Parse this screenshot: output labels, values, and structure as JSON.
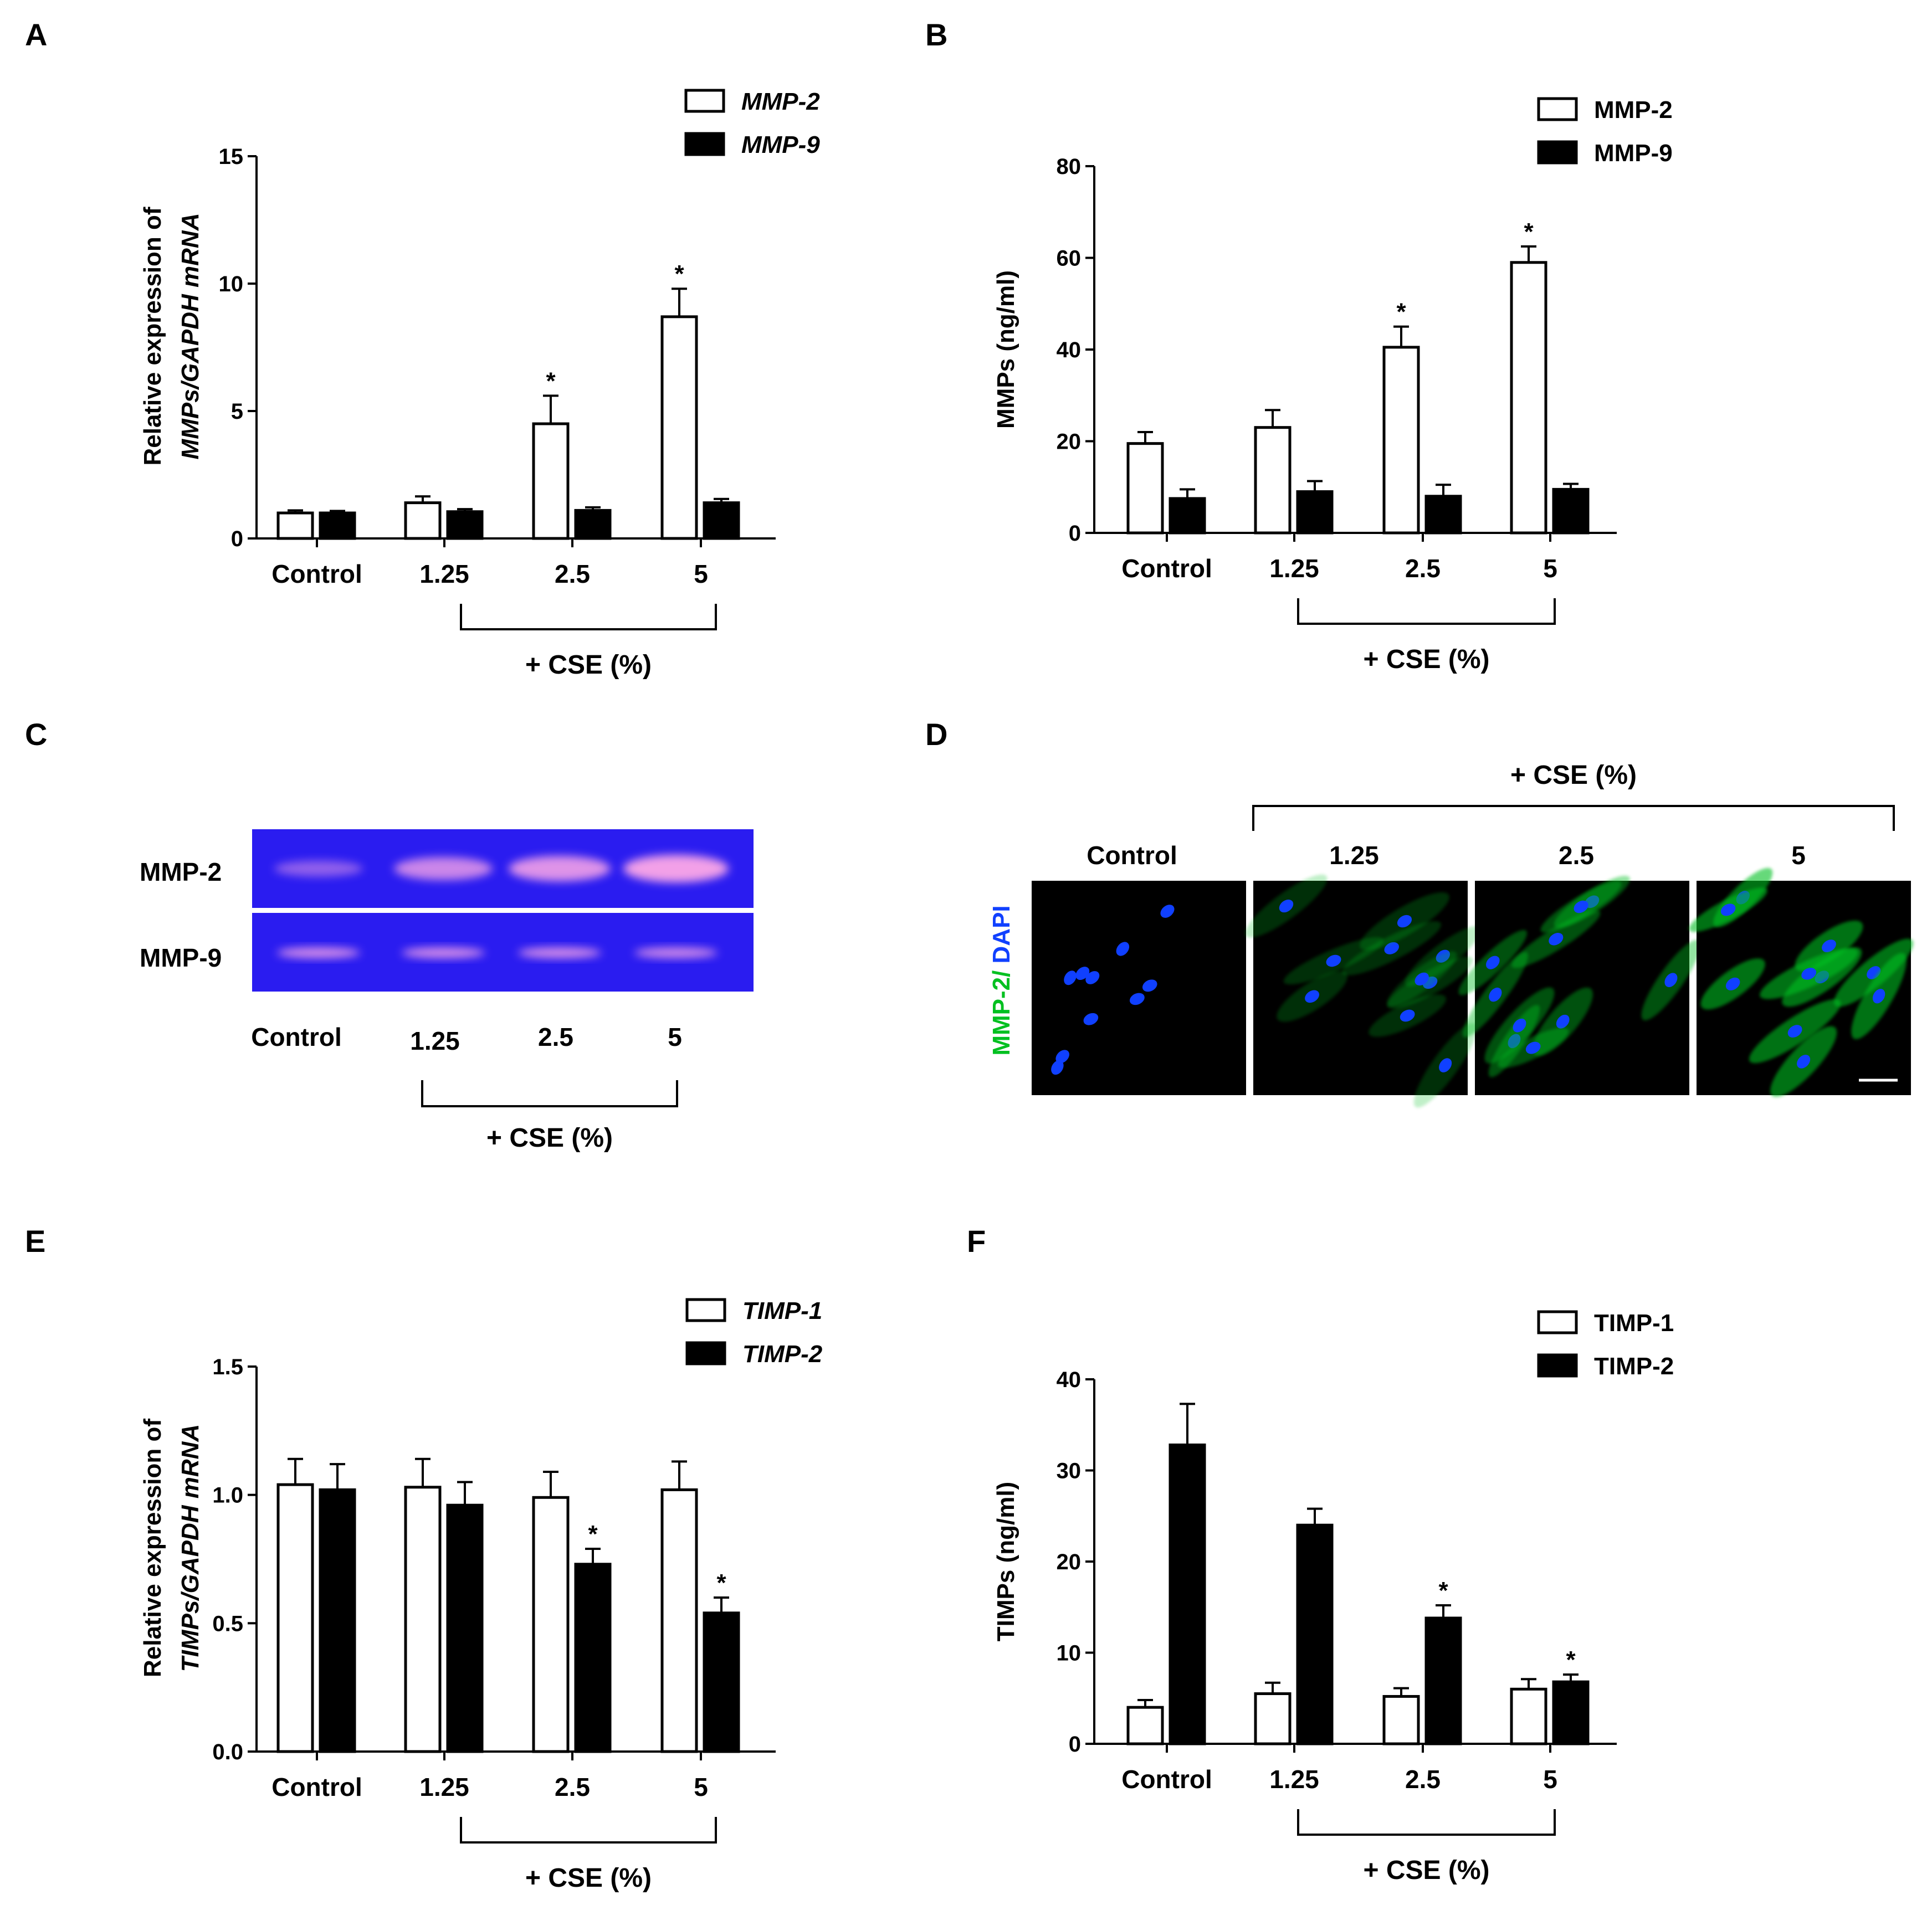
{
  "figure": {
    "panels": [
      "A",
      "B",
      "C",
      "D",
      "E",
      "F"
    ]
  },
  "chart_data": [
    {
      "panel": "A",
      "type": "bar",
      "categories": [
        "Control",
        "1.25",
        "2.5",
        "5"
      ],
      "group_label": "+ CSE (%)",
      "ylabel_line1": "Relative expression of",
      "ylabel_line2": "MMPs/GAPDH mRNA",
      "ylim": [
        0,
        15
      ],
      "yticks": [
        "0",
        "5",
        "10",
        "15"
      ],
      "legend_position": "top-right",
      "series": [
        {
          "name": "MMP-2",
          "fill": "#ffffff",
          "values": [
            1.0,
            1.4,
            4.5,
            8.7
          ],
          "errors": [
            0.1,
            0.25,
            1.1,
            1.1
          ],
          "stars": [
            false,
            false,
            true,
            true
          ]
        },
        {
          "name": "MMP-9",
          "fill": "#000000",
          "values": [
            1.0,
            1.05,
            1.1,
            1.4
          ],
          "errors": [
            0.08,
            0.1,
            0.12,
            0.15
          ],
          "stars": [
            false,
            false,
            false,
            false
          ]
        }
      ]
    },
    {
      "panel": "B",
      "type": "bar",
      "categories": [
        "Control",
        "1.25",
        "2.5",
        "5"
      ],
      "group_label": "+ CSE (%)",
      "ylabel_line1": "MMPs (ng/ml)",
      "ylabel_line2": "",
      "ylim": [
        0,
        80
      ],
      "yticks": [
        "0",
        "20",
        "40",
        "60",
        "80"
      ],
      "legend_position": "top-right",
      "series": [
        {
          "name": "MMP-2",
          "fill": "#ffffff",
          "values": [
            19.5,
            23,
            40.5,
            59
          ],
          "errors": [
            2.5,
            3.8,
            4.5,
            3.5
          ],
          "stars": [
            false,
            false,
            true,
            true
          ]
        },
        {
          "name": "MMP-9",
          "fill": "#000000",
          "values": [
            7.5,
            9,
            8,
            9.5
          ],
          "errors": [
            2,
            2.3,
            2.5,
            1.2
          ],
          "stars": [
            false,
            false,
            false,
            false
          ]
        }
      ]
    },
    {
      "panel": "E",
      "type": "bar",
      "categories": [
        "Control",
        "1.25",
        "2.5",
        "5"
      ],
      "group_label": "+ CSE (%)",
      "ylabel_line1": "Relative expression of",
      "ylabel_line2": "TIMPs/GAPDH mRNA",
      "ylim": [
        0,
        1.5
      ],
      "yticks": [
        "0.0",
        "0.5",
        "1.0",
        "1.5"
      ],
      "legend_position": "top-right",
      "series": [
        {
          "name": "TIMP-1",
          "fill": "#ffffff",
          "values": [
            1.04,
            1.03,
            0.99,
            1.02
          ],
          "errors": [
            0.1,
            0.11,
            0.1,
            0.11
          ],
          "stars": [
            false,
            false,
            false,
            false
          ]
        },
        {
          "name": "TIMP-2",
          "fill": "#000000",
          "values": [
            1.02,
            0.96,
            0.73,
            0.54
          ],
          "errors": [
            0.1,
            0.09,
            0.06,
            0.06
          ],
          "stars": [
            false,
            false,
            true,
            true
          ]
        }
      ]
    },
    {
      "panel": "F",
      "type": "bar",
      "categories": [
        "Control",
        "1.25",
        "2.5",
        "5"
      ],
      "group_label": "+ CSE (%)",
      "ylabel_line1": "TIMPs (ng/ml)",
      "ylabel_line2": "",
      "ylim": [
        0,
        40
      ],
      "yticks": [
        "0",
        "10",
        "20",
        "30",
        "40"
      ],
      "legend_position": "top-right",
      "series": [
        {
          "name": "TIMP-1",
          "fill": "#ffffff",
          "values": [
            4,
            5.5,
            5.2,
            6
          ],
          "errors": [
            0.8,
            1.2,
            0.9,
            1.1
          ],
          "stars": [
            false,
            false,
            false,
            false
          ]
        },
        {
          "name": "TIMP-2",
          "fill": "#000000",
          "values": [
            32.8,
            24,
            13.8,
            6.8
          ],
          "errors": [
            4.5,
            1.8,
            1.4,
            0.8
          ],
          "stars": [
            false,
            false,
            true,
            true
          ]
        }
      ]
    }
  ],
  "gel": {
    "panel": "C",
    "row_labels": [
      "MMP-2",
      "MMP-9"
    ],
    "lane_labels": [
      "Control",
      "1.25",
      "2.5",
      "5"
    ],
    "group_label": "+ CSE (%)",
    "background_color": "#2a1cf0",
    "band_color": "#f2a0e8",
    "band_intensity": [
      [
        0.25,
        0.7,
        0.85,
        1.0
      ],
      [
        0.75,
        0.75,
        0.75,
        0.7
      ]
    ]
  },
  "micrographs": {
    "panel": "D",
    "group_label": "+ CSE (%)",
    "column_labels": [
      "Control",
      "1.25",
      "2.5",
      "5"
    ],
    "stain_label_green": "MMP-2/",
    "stain_label_blue": " DAPI",
    "green_color": "#00c020",
    "blue_color": "#1040ff",
    "green_intensity": [
      0.0,
      0.35,
      0.6,
      0.85
    ]
  },
  "star_symbol": "*"
}
